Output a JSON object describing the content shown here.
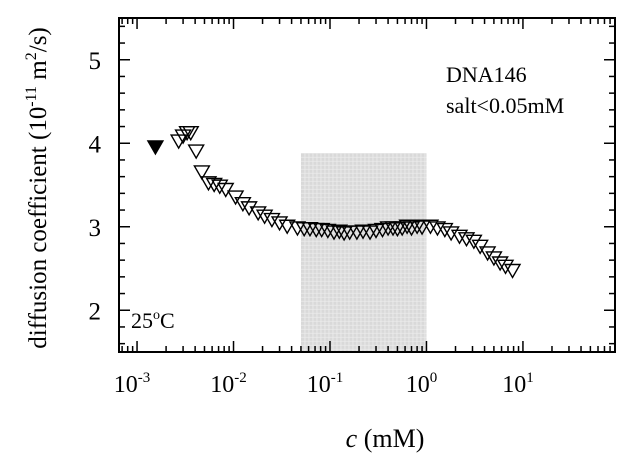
{
  "chart_data": {
    "type": "scatter",
    "x_scale": "log",
    "xlabel_var": "c",
    "xlabel_unit": " (mM)",
    "ylabel_main": "diffusion coefficient  (10",
    "ylabel_exp": "-11",
    "ylabel_mid": " m",
    "ylabel_exp2": "2",
    "ylabel_end": "/s)",
    "xlim": [
      0.00065,
      90
    ],
    "ylim": [
      1.5,
      5.5
    ],
    "x_ticks": [
      {
        "value": 0.001,
        "base": "10",
        "exp": "-3"
      },
      {
        "value": 0.01,
        "base": "10",
        "exp": "-2"
      },
      {
        "value": 0.1,
        "base": "10",
        "exp": "-1"
      },
      {
        "value": 1,
        "base": "10",
        "exp": "0"
      },
      {
        "value": 10,
        "base": "10",
        "exp": "1"
      }
    ],
    "y_ticks": [
      {
        "value": 2,
        "label": "2"
      },
      {
        "value": 3,
        "label": "3"
      },
      {
        "value": 4,
        "label": "4"
      },
      {
        "value": 5,
        "label": "5"
      }
    ],
    "annotations": {
      "sample_label": "DNA146",
      "salt_label": "salt<0.05mM",
      "temp_base": "25",
      "temp_sup": "o",
      "temp_unit": "C"
    },
    "shaded_region": {
      "x_range": [
        0.05,
        1.0
      ],
      "y_range": [
        1.5,
        3.88
      ],
      "color": "#d9d9d9"
    },
    "series": [
      {
        "marker": "down-triangle-filled",
        "points": [
          [
            0.00155,
            3.95
          ]
        ]
      },
      {
        "marker": "down-triangle-open",
        "points": [
          [
            0.0027,
            4.02
          ],
          [
            0.003,
            4.08
          ],
          [
            0.0033,
            4.12
          ],
          [
            0.0036,
            4.12
          ],
          [
            0.0041,
            3.9
          ],
          [
            0.0047,
            3.65
          ],
          [
            0.0055,
            3.52
          ],
          [
            0.0063,
            3.5
          ],
          [
            0.0072,
            3.48
          ],
          [
            0.0083,
            3.44
          ],
          [
            0.0105,
            3.35
          ],
          [
            0.0125,
            3.27
          ],
          [
            0.0145,
            3.22
          ],
          [
            0.018,
            3.16
          ],
          [
            0.021,
            3.12
          ],
          [
            0.025,
            3.08
          ],
          [
            0.03,
            3.04
          ],
          [
            0.036,
            3.0
          ],
          [
            0.046,
            2.98
          ],
          [
            0.054,
            2.97
          ],
          [
            0.062,
            2.97
          ],
          [
            0.072,
            2.96
          ],
          [
            0.082,
            2.96
          ],
          [
            0.095,
            2.95
          ],
          [
            0.11,
            2.93
          ],
          [
            0.125,
            2.94
          ],
          [
            0.14,
            2.92
          ],
          [
            0.16,
            2.93
          ],
          [
            0.19,
            2.93
          ],
          [
            0.22,
            2.94
          ],
          [
            0.26,
            2.93
          ],
          [
            0.3,
            2.95
          ],
          [
            0.35,
            2.96
          ],
          [
            0.4,
            2.98
          ],
          [
            0.45,
            2.98
          ],
          [
            0.5,
            2.97
          ],
          [
            0.56,
            2.98
          ],
          [
            0.63,
            3.0
          ],
          [
            0.7,
            2.98
          ],
          [
            0.8,
            3.0
          ],
          [
            0.9,
            2.99
          ],
          [
            1.1,
            3.0
          ],
          [
            1.3,
            2.98
          ],
          [
            1.55,
            2.96
          ],
          [
            1.8,
            2.92
          ],
          [
            2.2,
            2.88
          ],
          [
            2.6,
            2.85
          ],
          [
            3.1,
            2.82
          ],
          [
            3.6,
            2.76
          ],
          [
            4.3,
            2.68
          ],
          [
            5.0,
            2.62
          ],
          [
            5.8,
            2.56
          ],
          [
            6.6,
            2.52
          ],
          [
            7.8,
            2.47
          ]
        ]
      }
    ]
  }
}
